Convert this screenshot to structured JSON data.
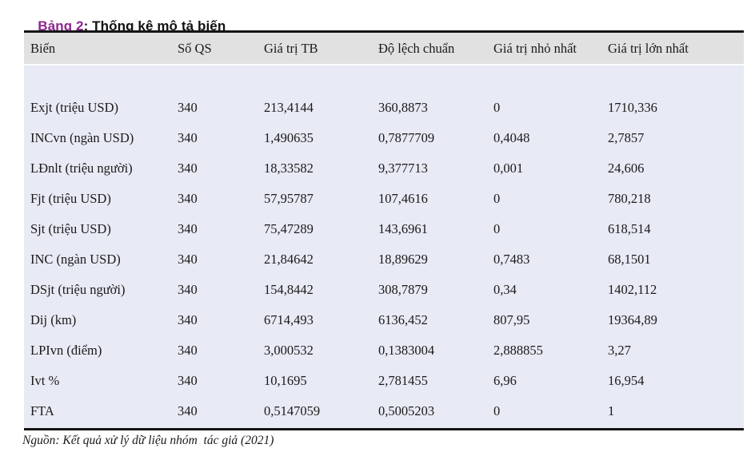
{
  "title": {
    "label": "Bảng 2",
    "rest": ": Thống kê mô tả biến"
  },
  "colors": {
    "accent": "#8e2690",
    "header_bg": "#e2e1e1",
    "body_bg": "#e8eaf5",
    "border": "#141414"
  },
  "table": {
    "columns": [
      "Biến",
      "Số QS",
      "Giá trị TB",
      "Độ lệch chuẩn",
      "Giá trị nhỏ nhất",
      "Giá trị lớn nhất"
    ],
    "rows": [
      [
        "Exjt (triệu USD)",
        "340",
        "213,4144",
        "360,8873",
        "0",
        "1710,336"
      ],
      [
        "INCvn (ngàn USD)",
        "340",
        "1,490635",
        "0,7877709",
        "0,4048",
        "2,7857"
      ],
      [
        "LĐnlt (triệu người)",
        "340",
        "18,33582",
        "9,377713",
        "0,001",
        "24,606"
      ],
      [
        "Fjt (triệu USD)",
        "340",
        "57,95787",
        "107,4616",
        "0",
        "780,218"
      ],
      [
        "Sjt (triệu USD)",
        "340",
        "75,47289",
        "143,6961",
        "0",
        "618,514"
      ],
      [
        "INC (ngàn USD)",
        "340",
        "21,84642",
        "18,89629",
        "0,7483",
        "68,1501"
      ],
      [
        "DSjt (triệu người)",
        "340",
        "154,8442",
        "308,7879",
        "0,34",
        "1402,112"
      ],
      [
        "Dij (km)",
        "340",
        "6714,493",
        "6136,452",
        "807,95",
        "19364,89"
      ],
      [
        "LPIvn (điểm)",
        "340",
        "3,000532",
        "0,1383004",
        "2,888855",
        "3,27"
      ],
      [
        "Ivt %",
        "340",
        "10,1695",
        "2,781455",
        "6,96",
        "16,954"
      ],
      [
        "FTA",
        "340",
        "0,5147059",
        "0,5005203",
        "0",
        "1"
      ]
    ]
  },
  "footer": {
    "source": "Nguồn: Kết quả xử lý dữ liệu nhóm  tác giả (2021)"
  }
}
